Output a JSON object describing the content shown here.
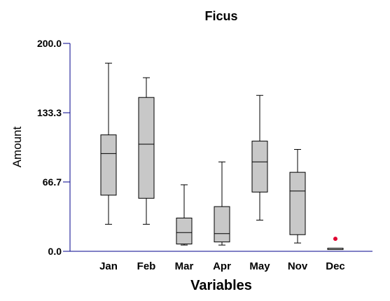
{
  "chart_data": {
    "type": "box",
    "title": "Ficus",
    "xlabel": "Variables",
    "ylabel": "Amount",
    "ylim": [
      0,
      200
    ],
    "yticks": [
      "0.0",
      "66.7",
      "133.3",
      "200.0"
    ],
    "categories": [
      "Jan",
      "Feb",
      "Mar",
      "Apr",
      "May",
      "Nov",
      "Dec"
    ],
    "boxes": [
      {
        "label": "Jan",
        "min": 26,
        "q1": 54,
        "median": 94,
        "q3": 112,
        "max": 181
      },
      {
        "label": "Feb",
        "min": 26,
        "q1": 51,
        "median": 103,
        "q3": 148,
        "max": 167
      },
      {
        "label": "Mar",
        "min": 6,
        "q1": 7,
        "median": 18,
        "q3": 32,
        "max": 64
      },
      {
        "label": "Apr",
        "min": 6,
        "q1": 9,
        "median": 17,
        "q3": 43,
        "max": 86
      },
      {
        "label": "May",
        "min": 30,
        "q1": 57,
        "median": 86,
        "q3": 106,
        "max": 150
      },
      {
        "label": "Nov",
        "min": 8,
        "q1": 16,
        "median": 58,
        "q3": 76,
        "max": 98
      },
      {
        "label": "Dec",
        "min": 2,
        "q1": 2,
        "median": 3,
        "q3": 3,
        "max": 3,
        "outliers": [
          12
        ]
      }
    ],
    "box_fill": "#c8c8c8",
    "outlier_color": "#e00030",
    "axis_color": "#00008b",
    "grid": false
  }
}
